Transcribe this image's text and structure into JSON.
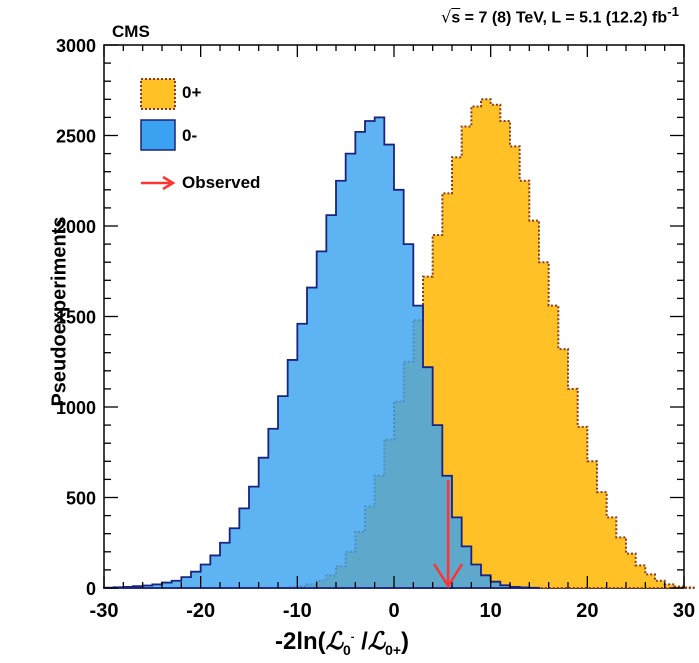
{
  "chart_data": {
    "type": "histogram",
    "experiment_label": "CMS",
    "energy_label": {
      "prefix": "√s",
      "rest": " = 7 (8) TeV, L = 5.1 (12.2) fb",
      "sup": "-1"
    },
    "xlabel": {
      "main": "-2ln(",
      "L1": "ℒ",
      "sub1": "0",
      "sup1": "-",
      "sep": " /",
      "L2": "ℒ",
      "sub2": "0+",
      "end": ")"
    },
    "ylabel": "Pseudoexperiments",
    "xlim": [
      -30,
      30
    ],
    "ylim": [
      0,
      3000
    ],
    "xticks": [
      "-30",
      "-20",
      "-10",
      "0",
      "10",
      "20",
      "30"
    ],
    "yticks": [
      "0",
      "500",
      "1000",
      "1500",
      "2000",
      "2500",
      "3000"
    ],
    "bin_width": 1,
    "series": [
      {
        "name": "0+",
        "color": "#FFC125",
        "edge": "#8B3A1A",
        "edge_style": "dotted",
        "bin_lo": -12,
        "values": [
          0,
          5,
          10,
          20,
          40,
          70,
          120,
          200,
          310,
          450,
          620,
          820,
          1030,
          1250,
          1480,
          1720,
          1950,
          2180,
          2380,
          2550,
          2660,
          2700,
          2670,
          2580,
          2440,
          2250,
          2030,
          1800,
          1560,
          1320,
          1100,
          890,
          700,
          530,
          390,
          280,
          190,
          125,
          75,
          40,
          20,
          8,
          3
        ]
      },
      {
        "name": "0-",
        "color": "#3AA2F0",
        "edge": "#1A237E",
        "edge_style": "solid",
        "bin_lo": -30,
        "values": [
          2,
          4,
          6,
          10,
          14,
          20,
          30,
          40,
          60,
          90,
          130,
          180,
          250,
          330,
          440,
          560,
          720,
          880,
          1060,
          1260,
          1460,
          1660,
          1860,
          2060,
          2250,
          2400,
          2520,
          2580,
          2600,
          2450,
          2200,
          1900,
          1560,
          1220,
          900,
          620,
          390,
          230,
          130,
          70,
          35,
          15,
          6,
          3,
          1
        ]
      }
    ],
    "observed": {
      "name": "Observed",
      "x": 5.6,
      "color": "#FF3333"
    },
    "legend": {
      "position": "top-left",
      "entries": [
        "0+",
        "0-",
        "Observed"
      ]
    }
  }
}
